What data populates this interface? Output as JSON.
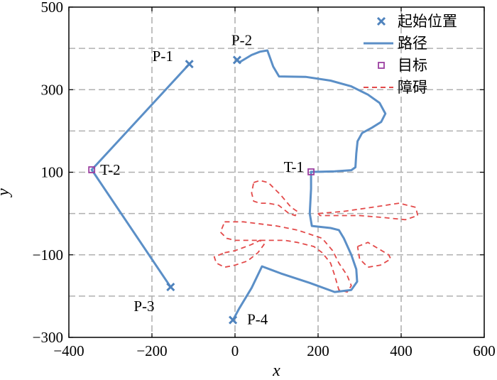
{
  "chart_data": {
    "type": "line",
    "title": "",
    "xlabel": "x",
    "ylabel": "y",
    "xlim": [
      -400,
      600
    ],
    "ylim": [
      -300,
      500
    ],
    "xticks": [
      -400,
      -200,
      0,
      200,
      400,
      600
    ],
    "yticks": [
      -300,
      -100,
      100,
      300,
      500
    ],
    "xtick_labels": [
      "−400",
      "−200",
      "0",
      "200",
      "400",
      "600"
    ],
    "ytick_labels": [
      "−300",
      "−100",
      "100",
      "300",
      "500"
    ],
    "grid": true,
    "grid_x": [
      -200,
      0,
      200,
      400
    ],
    "grid_y": [
      -200,
      -100,
      0,
      100,
      200,
      300,
      400
    ],
    "legend_position": "top-right",
    "legend": [
      {
        "label": "起始位置",
        "kind": "start",
        "color": "#4f83bd"
      },
      {
        "label": "路径",
        "kind": "path",
        "color": "#5b8fc7"
      },
      {
        "label": "目标",
        "kind": "target",
        "color": "#9b3fa0"
      },
      {
        "label": "障碍",
        "kind": "obstacle",
        "color": "#e34a4a"
      }
    ],
    "start_points": [
      {
        "label": "P-1",
        "x": -110,
        "y": 362
      },
      {
        "label": "P-2",
        "x": 5,
        "y": 372
      },
      {
        "label": "P-3",
        "x": -155,
        "y": -178
      },
      {
        "label": "P-4",
        "x": -5,
        "y": -258
      }
    ],
    "targets": [
      {
        "label": "T-1",
        "x": 183,
        "y": 101
      },
      {
        "label": "T-2",
        "x": -345,
        "y": 106
      }
    ],
    "paths": [
      {
        "name": "P-1 path",
        "points": [
          [
            -110,
            362
          ],
          [
            -345,
            106
          ]
        ]
      },
      {
        "name": "P-3 path",
        "points": [
          [
            -155,
            -178
          ],
          [
            -345,
            106
          ]
        ]
      },
      {
        "name": "P-2 path",
        "points": [
          [
            5,
            372
          ],
          [
            10,
            366
          ],
          [
            20,
            372
          ],
          [
            40,
            384
          ],
          [
            60,
            392
          ],
          [
            78,
            395
          ],
          [
            92,
            356
          ],
          [
            106,
            332
          ],
          [
            170,
            331
          ],
          [
            230,
            322
          ],
          [
            280,
            308
          ],
          [
            320,
            288
          ],
          [
            348,
            268
          ],
          [
            362,
            242
          ],
          [
            352,
            222
          ],
          [
            330,
            208
          ],
          [
            306,
            195
          ],
          [
            295,
            175
          ],
          [
            292,
            145
          ],
          [
            290,
            112
          ],
          [
            280,
            105
          ],
          [
            240,
            102
          ],
          [
            200,
            101
          ],
          [
            183,
            101
          ]
        ]
      },
      {
        "name": "P-4 path",
        "points": [
          [
            -5,
            -258
          ],
          [
            10,
            -230
          ],
          [
            40,
            -180
          ],
          [
            65,
            -128
          ],
          [
            110,
            -145
          ],
          [
            180,
            -168
          ],
          [
            240,
            -190
          ],
          [
            280,
            -185
          ],
          [
            294,
            -165
          ],
          [
            292,
            -135
          ],
          [
            280,
            -100
          ],
          [
            262,
            -60
          ],
          [
            250,
            -40
          ],
          [
            230,
            -35
          ],
          [
            185,
            -30
          ],
          [
            180,
            0
          ],
          [
            183,
            60
          ],
          [
            183,
            101
          ]
        ]
      }
    ],
    "obstacles": [
      {
        "points": [
          [
            45,
            75
          ],
          [
            60,
            80
          ],
          [
            80,
            75
          ],
          [
            110,
            45
          ],
          [
            135,
            15
          ],
          [
            150,
            5
          ],
          [
            145,
            -5
          ],
          [
            130,
            0
          ],
          [
            105,
            20
          ],
          [
            80,
            25
          ],
          [
            60,
            25
          ],
          [
            45,
            30
          ],
          [
            40,
            50
          ],
          [
            45,
            75
          ]
        ]
      },
      {
        "points": [
          [
            200,
            0
          ],
          [
            260,
            5
          ],
          [
            330,
            15
          ],
          [
            395,
            25
          ],
          [
            435,
            15
          ],
          [
            440,
            -5
          ],
          [
            410,
            -15
          ],
          [
            360,
            -10
          ],
          [
            300,
            -5
          ],
          [
            240,
            -5
          ],
          [
            205,
            -5
          ],
          [
            200,
            0
          ]
        ]
      },
      {
        "points": [
          [
            -25,
            -20
          ],
          [
            20,
            -20
          ],
          [
            60,
            -25
          ],
          [
            100,
            -30
          ],
          [
            150,
            -40
          ],
          [
            210,
            -60
          ],
          [
            235,
            -90
          ],
          [
            250,
            -120
          ],
          [
            270,
            -150
          ],
          [
            280,
            -175
          ],
          [
            270,
            -190
          ],
          [
            250,
            -185
          ],
          [
            240,
            -150
          ],
          [
            230,
            -120
          ],
          [
            210,
            -95
          ],
          [
            190,
            -80
          ],
          [
            150,
            -70
          ],
          [
            120,
            -65
          ],
          [
            80,
            -65
          ],
          [
            30,
            -65
          ],
          [
            0,
            -65
          ],
          [
            -20,
            -60
          ],
          [
            -35,
            -45
          ],
          [
            -25,
            -20
          ]
        ]
      },
      {
        "points": [
          [
            -25,
            -95
          ],
          [
            0,
            -90
          ],
          [
            40,
            -75
          ],
          [
            60,
            -65
          ],
          [
            70,
            -75
          ],
          [
            55,
            -95
          ],
          [
            30,
            -115
          ],
          [
            0,
            -125
          ],
          [
            -25,
            -130
          ],
          [
            -45,
            -120
          ],
          [
            -50,
            -105
          ],
          [
            -25,
            -95
          ]
        ]
      },
      {
        "points": [
          [
            295,
            -80
          ],
          [
            320,
            -70
          ],
          [
            345,
            -85
          ],
          [
            370,
            -100
          ],
          [
            375,
            -110
          ],
          [
            350,
            -125
          ],
          [
            320,
            -130
          ],
          [
            300,
            -110
          ],
          [
            295,
            -80
          ]
        ]
      }
    ]
  }
}
